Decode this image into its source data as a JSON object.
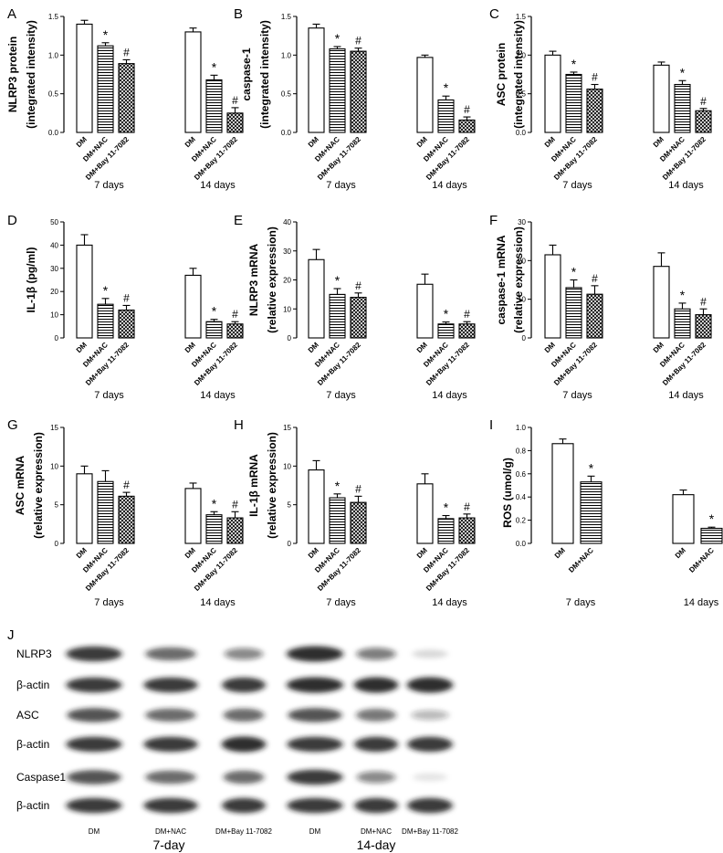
{
  "chart_data": [
    {
      "panel_letter": "A",
      "type": "bar",
      "ylabel_lines": [
        "NLRP3 protein",
        "(integrated intensity)"
      ],
      "ylim": [
        0,
        1.5
      ],
      "yticks": [
        "0.0",
        "0.5",
        "1.0",
        "1.5"
      ],
      "categories": [
        "DM",
        "DM+NAC",
        "DM+Bay 11-7082",
        "DM",
        "DM+NAC",
        "DM+Bay 11-7082"
      ],
      "groups": [
        "7 days",
        "14 days"
      ],
      "values": [
        1.4,
        1.12,
        0.89,
        1.3,
        0.68,
        0.25
      ],
      "errors": [
        0.05,
        0.04,
        0.05,
        0.05,
        0.06,
        0.07
      ],
      "annotations": [
        "",
        "*",
        "#",
        "",
        "*",
        "#"
      ]
    },
    {
      "panel_letter": "B",
      "type": "bar",
      "ylabel_lines": [
        "caspase-1",
        "(integrated intensity)"
      ],
      "ylim": [
        0,
        1.5
      ],
      "yticks": [
        "0.0",
        "0.5",
        "1.0",
        "1.5"
      ],
      "categories": [
        "DM",
        "DM+NAC",
        "DM+Bay 11-7082",
        "DM",
        "DM+NAC",
        "DM+Bay 11-7082"
      ],
      "groups": [
        "7 days",
        "14 days"
      ],
      "values": [
        1.35,
        1.08,
        1.05,
        0.97,
        0.42,
        0.16
      ],
      "errors": [
        0.05,
        0.03,
        0.04,
        0.03,
        0.05,
        0.04
      ],
      "annotations": [
        "",
        "*",
        "#",
        "",
        "*",
        "#"
      ]
    },
    {
      "panel_letter": "C",
      "type": "bar",
      "ylabel_lines": [
        "ASC protein",
        "(integrated intensity)"
      ],
      "ylim": [
        0,
        1.5
      ],
      "yticks": [
        "0.0",
        "0.5",
        "1.0",
        "1.5"
      ],
      "categories": [
        "DM",
        "DM+NAC",
        "DM+Bay 11-7082",
        "DM",
        "DM+NAC",
        "DM+Bay 11-7082"
      ],
      "groups": [
        "7 days",
        "14 days"
      ],
      "values": [
        1.0,
        0.75,
        0.56,
        0.87,
        0.62,
        0.28
      ],
      "errors": [
        0.05,
        0.03,
        0.06,
        0.04,
        0.05,
        0.03
      ],
      "annotations": [
        "",
        "*",
        "#",
        "",
        "*",
        "#"
      ]
    },
    {
      "panel_letter": "D",
      "type": "bar",
      "ylabel_lines": [
        "IL-1β  (pg/ml)"
      ],
      "ylim": [
        0,
        50
      ],
      "yticks": [
        "0",
        "10",
        "20",
        "30",
        "40",
        "50"
      ],
      "categories": [
        "DM",
        "DM+NAC",
        "DM+Bay 11-7082",
        "DM",
        "DM+NAC",
        "DM+Bay 11-7082"
      ],
      "groups": [
        "7 days",
        "14 days"
      ],
      "values": [
        40,
        14.5,
        12,
        27,
        7,
        6
      ],
      "errors": [
        4.5,
        2.5,
        2,
        3,
        1,
        1
      ],
      "annotations": [
        "",
        "*",
        "#",
        "",
        "*",
        "#"
      ]
    },
    {
      "panel_letter": "E",
      "type": "bar",
      "ylabel_lines": [
        "NLRP3 mRNA",
        "(relative expression)"
      ],
      "ylim": [
        0,
        40
      ],
      "yticks": [
        "0",
        "10",
        "20",
        "30",
        "40"
      ],
      "categories": [
        "DM",
        "DM+NAC",
        "DM+Bay 11-7082",
        "DM",
        "DM+NAC",
        "DM+Bay 11-7082"
      ],
      "groups": [
        "7 days",
        "14 days"
      ],
      "values": [
        27,
        15,
        14,
        18.5,
        4.8,
        4.8
      ],
      "errors": [
        3.5,
        2,
        1.5,
        3.5,
        0.7,
        0.8
      ],
      "annotations": [
        "",
        "*",
        "#",
        "",
        "*",
        "#"
      ]
    },
    {
      "panel_letter": "F",
      "type": "bar",
      "ylabel_lines": [
        "caspase-1 mRNA",
        "(relative expression)"
      ],
      "ylim": [
        0,
        30
      ],
      "yticks": [
        "0",
        "10",
        "20",
        "30"
      ],
      "categories": [
        "DM",
        "DM+NAC",
        "DM+Bay 11-7082",
        "DM",
        "DM+NAC",
        "DM+Bay 11-7082"
      ],
      "groups": [
        "7 days",
        "14 days"
      ],
      "values": [
        21.5,
        13,
        11.3,
        18.5,
        7.5,
        6
      ],
      "errors": [
        2.5,
        2,
        2.2,
        3.5,
        1.5,
        1.5
      ],
      "annotations": [
        "",
        "*",
        "#",
        "",
        "*",
        "#"
      ]
    },
    {
      "panel_letter": "G",
      "type": "bar",
      "ylabel_lines": [
        "ASC mRNA",
        "(relative expression)"
      ],
      "ylim": [
        0,
        15
      ],
      "yticks": [
        "0",
        "5",
        "10",
        "15"
      ],
      "categories": [
        "DM",
        "DM+NAC",
        "DM+Bay 11-7082",
        "DM",
        "DM+NAC",
        "DM+Bay 11-7082"
      ],
      "groups": [
        "7 days",
        "14 days"
      ],
      "values": [
        9.0,
        8.0,
        6.1,
        7.1,
        3.7,
        3.3
      ],
      "errors": [
        1.0,
        1.4,
        0.5,
        0.7,
        0.4,
        0.8
      ],
      "annotations": [
        "",
        "",
        "#",
        "",
        "*",
        "#"
      ]
    },
    {
      "panel_letter": "H",
      "type": "bar",
      "ylabel_lines": [
        "IL-1β  mRNA",
        "(relative expression)"
      ],
      "ylim": [
        0,
        15
      ],
      "yticks": [
        "0",
        "5",
        "10",
        "15"
      ],
      "categories": [
        "DM",
        "DM+NAC",
        "DM+Bay 11-7082",
        "DM",
        "DM+NAC",
        "DM+Bay 11-7082"
      ],
      "groups": [
        "7 days",
        "14 days"
      ],
      "values": [
        9.5,
        5.9,
        5.3,
        7.7,
        3.2,
        3.3
      ],
      "errors": [
        1.2,
        0.5,
        0.8,
        1.3,
        0.4,
        0.5
      ],
      "annotations": [
        "",
        "*",
        "#",
        "",
        "*",
        "#"
      ]
    },
    {
      "panel_letter": "I",
      "type": "bar",
      "ylabel_lines": [
        "ROS (umol/g)"
      ],
      "ylim": [
        0,
        1.0
      ],
      "yticks": [
        "0.0",
        "0.2",
        "0.4",
        "0.6",
        "0.8",
        "1.0"
      ],
      "categories": [
        "DM",
        "DM+NAC",
        "DM",
        "DM+NAC"
      ],
      "groups": [
        "7 days",
        "14 days"
      ],
      "values": [
        0.86,
        0.53,
        0.42,
        0.13
      ],
      "errors": [
        0.04,
        0.05,
        0.04,
        0.01
      ],
      "annotations": [
        "",
        "*",
        "",
        "*"
      ]
    }
  ],
  "blot": {
    "panel_letter": "J",
    "row_labels": [
      "NLRP3",
      "β-actin",
      "ASC",
      "β-actin",
      "Caspase1",
      "β-actin"
    ],
    "lane_labels": [
      "DM",
      "DM+NAC",
      "DM+Bay 11-7082",
      "DM",
      "DM+NAC",
      "DM+Bay 11-7082"
    ],
    "group_labels": [
      "7-day",
      "14-day"
    ],
    "band_intensity": [
      [
        0.85,
        0.65,
        0.5,
        0.9,
        0.55,
        0.15
      ],
      [
        0.85,
        0.85,
        0.85,
        0.9,
        0.9,
        0.9
      ],
      [
        0.75,
        0.65,
        0.65,
        0.75,
        0.6,
        0.3
      ],
      [
        0.85,
        0.85,
        0.9,
        0.85,
        0.85,
        0.85
      ],
      [
        0.75,
        0.65,
        0.65,
        0.85,
        0.5,
        0.1
      ],
      [
        0.85,
        0.85,
        0.85,
        0.85,
        0.85,
        0.85
      ]
    ],
    "colors": {
      "band": "#1a1a1a"
    }
  }
}
